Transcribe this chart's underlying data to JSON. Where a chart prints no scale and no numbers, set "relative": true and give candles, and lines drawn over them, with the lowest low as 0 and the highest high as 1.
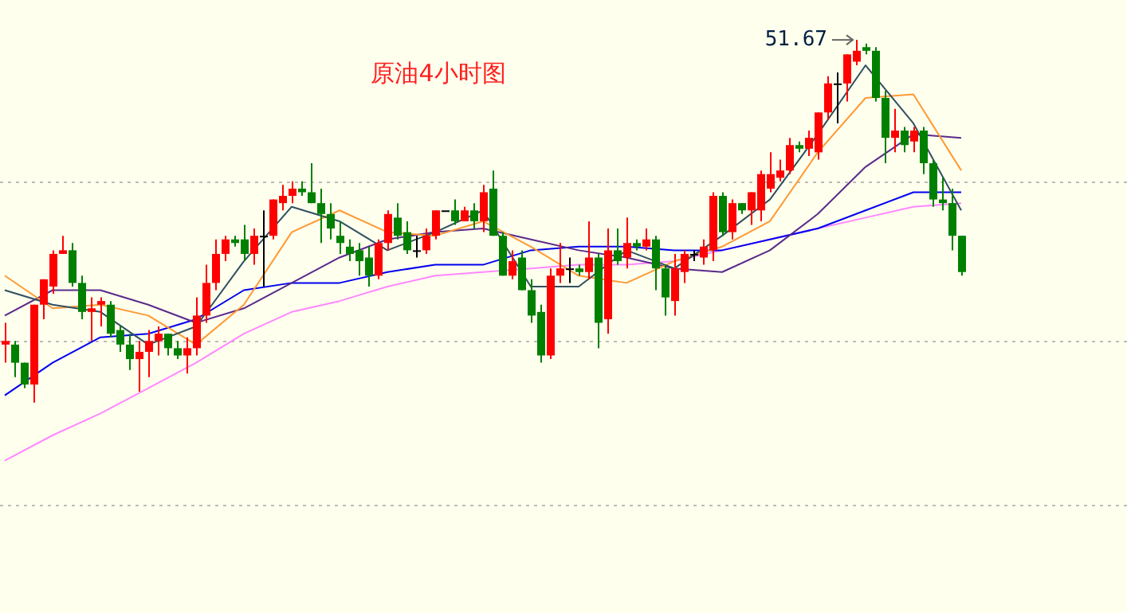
{
  "chart_data": {
    "type": "candlestick",
    "title": "原油4小时图",
    "relative": true,
    "legend": false,
    "categories": [
      null,
      null,
      null,
      null,
      null,
      null,
      null,
      null,
      null,
      null,
      null,
      null,
      null,
      null,
      null,
      null,
      null,
      null,
      null,
      null,
      null,
      null,
      null,
      null,
      null,
      null,
      null,
      null,
      null,
      null,
      null,
      null,
      null,
      null,
      null,
      null,
      null,
      null,
      null,
      null,
      null,
      null,
      null,
      null,
      null,
      null,
      null,
      null,
      null,
      null,
      null,
      null,
      null,
      null,
      null,
      null,
      null,
      null,
      null,
      null,
      null,
      null,
      null,
      null,
      null,
      null,
      null,
      null,
      null,
      null,
      null,
      null,
      null,
      null,
      null,
      null,
      null,
      null,
      null,
      null,
      null,
      null,
      null,
      null,
      null,
      null,
      null,
      null,
      null,
      null,
      null,
      null,
      null,
      null,
      null,
      null,
      null,
      null,
      null,
      null,
      null
    ],
    "ohlc": [
      [
        0.16,
        0.22,
        0.11,
        0.17
      ],
      [
        0.16,
        0.17,
        0.07,
        0.11
      ],
      [
        0.11,
        0.11,
        0.04,
        0.05
      ],
      [
        0.05,
        0.27,
        0,
        0.27
      ],
      [
        0.27,
        0.34,
        0.23,
        0.34
      ],
      [
        0.32,
        0.42,
        0.3,
        0.41
      ],
      [
        0.41,
        0.46,
        0.41,
        0.42
      ],
      [
        0.42,
        0.44,
        0.32,
        0.33
      ],
      [
        0.33,
        0.35,
        0.23,
        0.25
      ],
      [
        0.25,
        0.29,
        0.17,
        0.26
      ],
      [
        0.27,
        0.29,
        0.21,
        0.28
      ],
      [
        0.27,
        0.28,
        0.18,
        0.19
      ],
      [
        0.2,
        0.21,
        0.14,
        0.16
      ],
      [
        0.16,
        0.19,
        0.09,
        0.12
      ],
      [
        0.12,
        0.17,
        0.03,
        0.14
      ],
      [
        0.14,
        0.2,
        0.07,
        0.17
      ],
      [
        0.17,
        0.21,
        0.13,
        0.19
      ],
      [
        0.19,
        0.19,
        0.13,
        0.15
      ],
      [
        0.15,
        0.17,
        0.12,
        0.13
      ],
      [
        0.13,
        0.18,
        0.08,
        0.15
      ],
      [
        0.15,
        0.29,
        0.13,
        0.24
      ],
      [
        0.24,
        0.38,
        0.22,
        0.33
      ],
      [
        0.33,
        0.45,
        0.31,
        0.41
      ],
      [
        0.41,
        0.46,
        0.39,
        0.45
      ],
      [
        0.45,
        0.46,
        0.43,
        0.44
      ],
      [
        0.45,
        0.49,
        0.39,
        0.41
      ],
      [
        0.41,
        0.48,
        0.38,
        0.46
      ],
      [
        0.46,
        0.53,
        0.32,
        0.46
      ],
      [
        0.46,
        0.56,
        0.45,
        0.56
      ],
      [
        0.55,
        0.6,
        0.53,
        0.57
      ],
      [
        0.57,
        0.61,
        0.55,
        0.59
      ],
      [
        0.59,
        0.61,
        0.57,
        0.58
      ],
      [
        0.58,
        0.66,
        0.55,
        0.55
      ],
      [
        0.55,
        0.59,
        0.44,
        0.52
      ],
      [
        0.52,
        0.55,
        0.45,
        0.48
      ],
      [
        0.46,
        0.5,
        0.41,
        0.44
      ],
      [
        0.43,
        0.45,
        0.39,
        0.41
      ],
      [
        0.42,
        0.44,
        0.35,
        0.39
      ],
      [
        0.4,
        0.43,
        0.32,
        0.35
      ],
      [
        0.35,
        0.45,
        0.34,
        0.44
      ],
      [
        0.44,
        0.53,
        0.42,
        0.52
      ],
      [
        0.51,
        0.55,
        0.45,
        0.46
      ],
      [
        0.47,
        0.5,
        0.41,
        0.42
      ],
      [
        0.42,
        0.46,
        0.4,
        0.42
      ],
      [
        0.42,
        0.48,
        0.41,
        0.46
      ],
      [
        0.46,
        0.53,
        0.45,
        0.53
      ],
      [
        0.53,
        0.53,
        0.53,
        0.53
      ],
      [
        0.53,
        0.56,
        0.49,
        0.5
      ],
      [
        0.5,
        0.54,
        0.5,
        0.53
      ],
      [
        0.53,
        0.55,
        0.48,
        0.5
      ],
      [
        0.5,
        0.6,
        0.47,
        0.58
      ],
      [
        0.59,
        0.64,
        0.46,
        0.46
      ],
      [
        0.46,
        0.47,
        0.35,
        0.35
      ],
      [
        0.35,
        0.42,
        0.34,
        0.39
      ],
      [
        0.4,
        0.42,
        0.31,
        0.31
      ],
      [
        0.31,
        0.34,
        0.22,
        0.24
      ],
      [
        0.25,
        0.27,
        0.11,
        0.13
      ],
      [
        0.13,
        0.37,
        0.12,
        0.35
      ],
      [
        0.35,
        0.44,
        0.33,
        0.37
      ],
      [
        0.37,
        0.4,
        0.33,
        0.37
      ],
      [
        0.37,
        0.38,
        0.35,
        0.36
      ],
      [
        0.36,
        0.5,
        0.34,
        0.4
      ],
      [
        0.4,
        0.41,
        0.15,
        0.22
      ],
      [
        0.23,
        0.48,
        0.19,
        0.42
      ],
      [
        0.42,
        0.48,
        0.38,
        0.39
      ],
      [
        0.4,
        0.51,
        0.37,
        0.44
      ],
      [
        0.44,
        0.45,
        0.42,
        0.43
      ],
      [
        0.43,
        0.48,
        0.42,
        0.45
      ],
      [
        0.45,
        0.46,
        0.31,
        0.37
      ],
      [
        0.37,
        0.38,
        0.24,
        0.29
      ],
      [
        0.28,
        0.41,
        0.24,
        0.37
      ],
      [
        0.36,
        0.42,
        0.33,
        0.41
      ],
      [
        0.41,
        0.42,
        0.39,
        0.41
      ],
      [
        0.4,
        0.45,
        0.38,
        0.43
      ],
      [
        0.42,
        0.58,
        0.39,
        0.57
      ],
      [
        0.57,
        0.58,
        0.46,
        0.47
      ],
      [
        0.47,
        0.56,
        0.45,
        0.55
      ],
      [
        0.55,
        0.55,
        0.52,
        0.53
      ],
      [
        0.53,
        0.58,
        0.49,
        0.58
      ],
      [
        0.53,
        0.64,
        0.5,
        0.63
      ],
      [
        0.59,
        0.69,
        0.58,
        0.63
      ],
      [
        0.62,
        0.67,
        0.61,
        0.64
      ],
      [
        0.64,
        0.73,
        0.63,
        0.71
      ],
      [
        0.71,
        0.72,
        0.69,
        0.7
      ],
      [
        0.7,
        0.75,
        0.68,
        0.73
      ],
      [
        0.69,
        0.8,
        0.67,
        0.8
      ],
      [
        0.8,
        0.9,
        0.78,
        0.88
      ],
      [
        0.88,
        0.91,
        0.77,
        0.88
      ],
      [
        0.88,
        0.96,
        0.83,
        0.96
      ],
      [
        0.94,
        1,
        0.93,
        0.97
      ],
      [
        0.98,
        0.99,
        0.96,
        0.97
      ],
      [
        0.97,
        0.98,
        0.83,
        0.84
      ],
      [
        0.84,
        0.86,
        0.66,
        0.73
      ],
      [
        0.73,
        0.81,
        0.69,
        0.75
      ],
      [
        0.75,
        0.76,
        0.69,
        0.71
      ],
      [
        0.72,
        0.76,
        0.69,
        0.75
      ],
      [
        0.75,
        0.76,
        0.63,
        0.66
      ],
      [
        0.66,
        0.67,
        0.54,
        0.56
      ],
      [
        0.56,
        0.62,
        0.53,
        0.55
      ],
      [
        0.55,
        0.59,
        0.42,
        0.46
      ],
      [
        0.46,
        0.46,
        0.35,
        0.36
      ]
    ],
    "series": [
      {
        "type": "line",
        "color": "#2f4f5f",
        "values": [
          0.31,
          null,
          null,
          null,
          null,
          0.27,
          null,
          null,
          null,
          null,
          0.25,
          null,
          null,
          null,
          null,
          0.16,
          null,
          null,
          null,
          null,
          0.21,
          null,
          null,
          null,
          null,
          0.39,
          null,
          null,
          null,
          null,
          0.54,
          null,
          null,
          null,
          null,
          0.5,
          null,
          null,
          null,
          null,
          0.42,
          null,
          null,
          null,
          null,
          0.47,
          null,
          null,
          null,
          null,
          0.53,
          null,
          null,
          null,
          null,
          0.32,
          null,
          null,
          null,
          null,
          0.32,
          null,
          null,
          null,
          null,
          0.42,
          null,
          null,
          null,
          null,
          0.37,
          null,
          null,
          null,
          null,
          0.46,
          null,
          null,
          null,
          null,
          0.56,
          null,
          null,
          null,
          null,
          0.74,
          null,
          null,
          null,
          null,
          0.93,
          null,
          null,
          null,
          null,
          0.77,
          null,
          null,
          null,
          null,
          0.53
        ]
      },
      {
        "type": "line",
        "color": "#ff9933",
        "values": [
          0.35,
          null,
          null,
          null,
          null,
          0.26,
          null,
          null,
          null,
          null,
          0.27,
          null,
          null,
          null,
          null,
          0.24,
          null,
          null,
          null,
          null,
          0.16,
          null,
          null,
          null,
          null,
          0.27,
          null,
          null,
          null,
          null,
          0.47,
          null,
          null,
          null,
          null,
          0.53,
          null,
          null,
          null,
          null,
          0.47,
          null,
          null,
          null,
          null,
          0.46,
          null,
          null,
          null,
          null,
          0.5,
          null,
          null,
          null,
          null,
          0.43,
          null,
          null,
          null,
          null,
          0.35,
          null,
          null,
          null,
          null,
          0.33,
          null,
          null,
          null,
          null,
          0.39,
          null,
          null,
          null,
          null,
          0.43,
          null,
          null,
          null,
          null,
          0.5,
          null,
          null,
          null,
          null,
          0.69,
          null,
          null,
          null,
          null,
          0.84,
          null,
          null,
          null,
          null,
          0.85,
          null,
          null,
          null,
          null,
          0.64
        ]
      },
      {
        "type": "line",
        "color": "#5a2a8a",
        "values": [
          0.24,
          null,
          null,
          null,
          null,
          0.31,
          null,
          null,
          null,
          null,
          0.31,
          null,
          null,
          null,
          null,
          0.27,
          null,
          null,
          null,
          null,
          0.22,
          null,
          null,
          null,
          null,
          0.26,
          null,
          null,
          null,
          null,
          0.33,
          null,
          null,
          null,
          null,
          0.4,
          null,
          null,
          null,
          null,
          0.45,
          null,
          null,
          null,
          null,
          0.47,
          null,
          null,
          null,
          null,
          0.48,
          null,
          null,
          null,
          null,
          0.45,
          null,
          null,
          null,
          null,
          0.42,
          null,
          null,
          null,
          null,
          0.4,
          null,
          null,
          null,
          null,
          0.37,
          null,
          null,
          null,
          null,
          0.36,
          null,
          null,
          null,
          null,
          0.42,
          null,
          null,
          null,
          null,
          0.52,
          null,
          null,
          null,
          null,
          0.65,
          null,
          null,
          null,
          null,
          0.74,
          null,
          null,
          null,
          null,
          0.73
        ]
      },
      {
        "type": "line",
        "color": "#0000ee",
        "values": [
          0.02,
          null,
          null,
          null,
          null,
          0.11,
          null,
          null,
          null,
          null,
          0.18,
          null,
          null,
          null,
          null,
          0.19,
          null,
          null,
          null,
          null,
          0.23,
          null,
          null,
          null,
          null,
          0.31,
          null,
          null,
          null,
          null,
          0.33,
          null,
          null,
          null,
          null,
          0.33,
          null,
          null,
          null,
          null,
          0.36,
          null,
          null,
          null,
          null,
          0.38,
          null,
          null,
          null,
          null,
          0.38,
          null,
          null,
          null,
          null,
          0.42,
          null,
          null,
          null,
          null,
          0.43,
          null,
          null,
          null,
          null,
          0.43,
          null,
          null,
          null,
          null,
          0.42,
          null,
          null,
          null,
          null,
          0.42,
          null,
          null,
          null,
          null,
          0.45,
          null,
          null,
          null,
          null,
          0.48,
          null,
          null,
          null,
          null,
          0.53,
          null,
          null,
          null,
          null,
          0.58,
          null,
          null,
          null,
          null,
          0.58
        ]
      },
      {
        "type": "line",
        "color": "#ff88ff",
        "values": [
          -0.16,
          null,
          null,
          null,
          null,
          -0.09,
          null,
          null,
          null,
          null,
          -0.03,
          null,
          null,
          null,
          null,
          0.04,
          null,
          null,
          null,
          null,
          0.11,
          null,
          null,
          null,
          null,
          0.19,
          null,
          null,
          null,
          null,
          0.25,
          null,
          null,
          null,
          null,
          0.28,
          null,
          null,
          null,
          null,
          0.32,
          null,
          null,
          null,
          null,
          0.35,
          null,
          null,
          null,
          null,
          0.36,
          null,
          null,
          null,
          null,
          0.37,
          null,
          null,
          null,
          null,
          0.38,
          null,
          null,
          null,
          null,
          0.38,
          null,
          null,
          null,
          null,
          0.39,
          null,
          null,
          null,
          null,
          0.42,
          null,
          null,
          null,
          null,
          0.45,
          null,
          null,
          null,
          null,
          0.48,
          null,
          null,
          null,
          null,
          0.51,
          null,
          null,
          null,
          null,
          0.54,
          null,
          null,
          null,
          null,
          0.55
        ]
      }
    ],
    "ref_lines": [
      {
        "axis": "y",
        "value": 0.61,
        "color": "#bbbbbb",
        "line_style": "dotted"
      },
      {
        "axis": "y",
        "value": 0.17,
        "color": "#bbbbbb",
        "line_style": "dotted"
      },
      {
        "axis": "y",
        "value": -0.28,
        "color": "#bbbbbb",
        "line_style": "dotted"
      }
    ],
    "annotations": [
      "51.67"
    ]
  }
}
